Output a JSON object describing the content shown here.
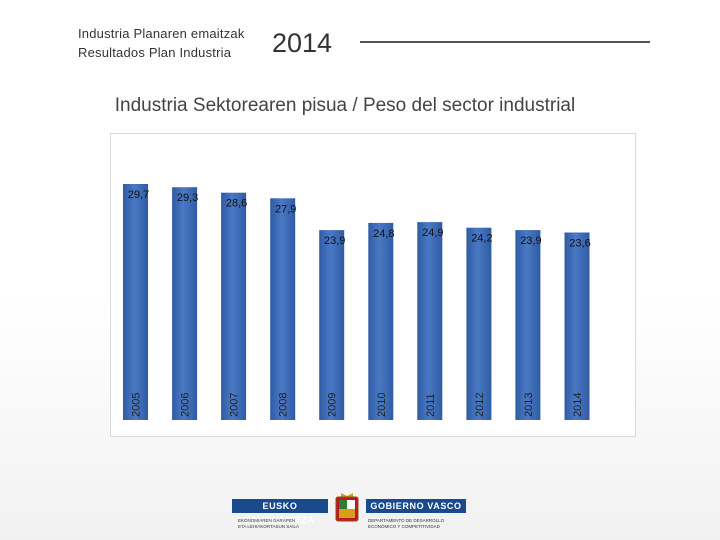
{
  "header": {
    "line1": "Industria Planaren emaitzak",
    "line2": "Resultados Plan Industria",
    "year": "2014"
  },
  "footer": {
    "brand_left": "EUSKO JAURLARITZA",
    "brand_right": "GOBIERNO VASCO",
    "dept_left_line1": "EKONOMIAREN GARAPEN",
    "dept_left_line2": "ETA LEHIAKORTASUN SAILA",
    "dept_right_line1": "DEPARTAMENTO DE DESARROLLO",
    "dept_right_line2": "ECONÓMICO Y COMPETITIVIDAD"
  },
  "colors": {
    "bar": "#4a79c4",
    "bar_dark": "#2f5ba3"
  },
  "chart_data": {
    "type": "bar",
    "title": "Industria Sektorearen pisua / Peso del sector industrial",
    "categories": [
      "2005",
      "2006",
      "2007",
      "2008",
      "2009",
      "2010",
      "2011",
      "2012",
      "2013",
      "2014"
    ],
    "values": [
      29.7,
      29.3,
      28.6,
      27.9,
      23.9,
      24.8,
      24.9,
      24.2,
      23.9,
      23.6
    ],
    "value_labels": [
      "29,7",
      "29,3",
      "28,6",
      "27,9",
      "23,9",
      "24,8",
      "24,9",
      "24,2",
      "23,9",
      "23,6"
    ],
    "ylim": [
      0,
      29.7
    ],
    "grid": false,
    "legend": "none",
    "bar_label_position": "inside-top",
    "tick_label_orientation": "vertical"
  }
}
